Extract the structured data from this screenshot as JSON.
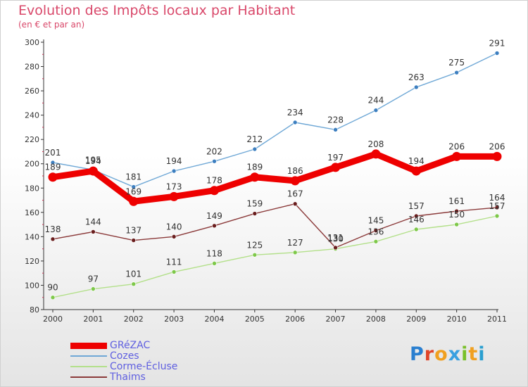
{
  "title": "Evolution des Impôts locaux par Habitant",
  "subtitle": "(en € et par an)",
  "logo": {
    "text": "Proxiti",
    "letter_colors": [
      "#2a7fd0",
      "#e0452a",
      "#f0a020",
      "#3aa0e0",
      "#7ac02a",
      "#f0a020",
      "#2a9fd0"
    ]
  },
  "chart_data": {
    "type": "line",
    "title": "Evolution des Impôts locaux par Habitant",
    "subtitle": "(en € et par an)",
    "xlabel": "",
    "ylabel": "",
    "x": [
      "2000",
      "2001",
      "2002",
      "2003",
      "2004",
      "2005",
      "2006",
      "2007",
      "2008",
      "2009",
      "2010",
      "2011"
    ],
    "y_ticks": [
      "80",
      "100",
      "120",
      "140",
      "160",
      "180",
      "200",
      "220",
      "240",
      "260",
      "280",
      "300"
    ],
    "ylim": [
      80,
      300
    ],
    "grid": false,
    "legend_position": "bottom-left",
    "series": [
      {
        "name": "GRéZAC",
        "color": "#ee0000",
        "emphasis": true,
        "values": [
          189,
          194,
          169,
          173,
          178,
          189,
          186,
          197,
          208,
          194,
          206,
          206
        ]
      },
      {
        "name": "Cozes",
        "color": "#6fa8d6",
        "marker": "#3d7fc0",
        "emphasis": false,
        "values": [
          201,
          195,
          181,
          194,
          202,
          212,
          234,
          228,
          244,
          263,
          275,
          291
        ]
      },
      {
        "name": "Corme-Écluse",
        "color": "#b3e08a",
        "marker": "#7ec84a",
        "emphasis": false,
        "values": [
          90,
          97,
          101,
          111,
          118,
          125,
          127,
          130,
          136,
          146,
          150,
          157
        ]
      },
      {
        "name": "Thaims",
        "color": "#8b3a3a",
        "marker": "#6a1e1e",
        "emphasis": false,
        "values": [
          138,
          144,
          137,
          140,
          149,
          159,
          167,
          131,
          145,
          157,
          161,
          164
        ]
      }
    ]
  }
}
